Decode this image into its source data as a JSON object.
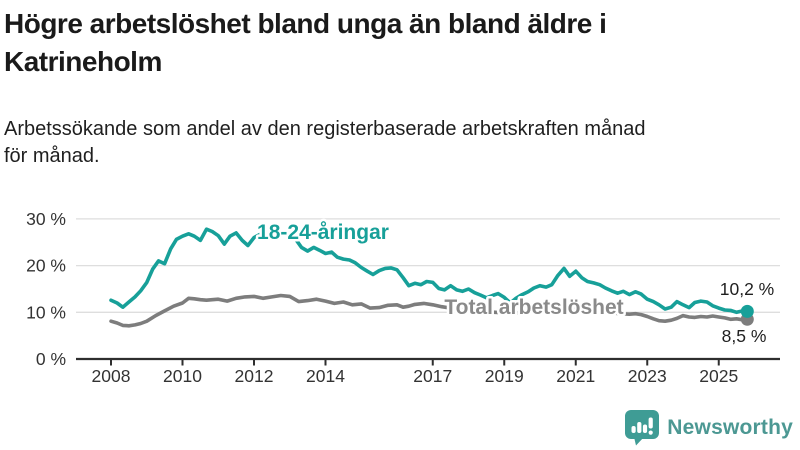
{
  "header": {
    "title": "Högre arbetslöshet bland unga än bland äldre i\nKatrineholm",
    "subtitle": "Arbetssökande som andel av den registerbaserade arbetskraften månad\nför månad."
  },
  "footer": {
    "brand": "Newsworthy",
    "logo_icon": "chart-speech-bubble-icon",
    "icon_color": "#3f9c95",
    "wordmark_color": "#4c9893"
  },
  "chart_data": {
    "type": "line",
    "title": "Högre arbetslöshet bland unga än bland äldre i Katrineholm",
    "subtitle": "Arbetssökande som andel av den registerbaserade arbetskraften månad för månad.",
    "grid": "horizontal",
    "legend_position": "inline-labels",
    "x_axis": {
      "ticks": [
        2008,
        2010,
        2012,
        2014,
        2017,
        2019,
        2021,
        2023,
        2025
      ],
      "tick_labels": [
        "2008",
        "2010",
        "2012",
        "2014",
        "2017",
        "2019",
        "2021",
        "2023",
        "2025"
      ],
      "range": [
        2008,
        2025.9
      ]
    },
    "y_axis": {
      "ticks": [
        0,
        10,
        20,
        30
      ],
      "tick_labels": [
        "0 %",
        "10 %",
        "20 %",
        "30 %"
      ],
      "range": [
        0,
        31
      ],
      "unit": "%"
    },
    "series": [
      {
        "id": "youth",
        "name": "18-24-åringar",
        "color": "#17a099",
        "end_value": 10.2,
        "end_label": "10,2 %",
        "points": [
          [
            2008.0,
            12.6
          ],
          [
            2008.17,
            12.0
          ],
          [
            2008.33,
            11.1
          ],
          [
            2008.5,
            12.2
          ],
          [
            2008.67,
            13.3
          ],
          [
            2008.83,
            14.6
          ],
          [
            2009.0,
            16.4
          ],
          [
            2009.17,
            19.3
          ],
          [
            2009.33,
            21.0
          ],
          [
            2009.5,
            20.4
          ],
          [
            2009.67,
            23.6
          ],
          [
            2009.83,
            25.6
          ],
          [
            2010.0,
            26.3
          ],
          [
            2010.17,
            26.8
          ],
          [
            2010.33,
            26.3
          ],
          [
            2010.5,
            25.4
          ],
          [
            2010.67,
            27.8
          ],
          [
            2010.83,
            27.3
          ],
          [
            2011.0,
            26.4
          ],
          [
            2011.17,
            24.6
          ],
          [
            2011.33,
            26.3
          ],
          [
            2011.5,
            27.0
          ],
          [
            2011.67,
            25.4
          ],
          [
            2011.83,
            24.3
          ],
          [
            2012.0,
            26.0
          ],
          [
            2012.17,
            26.7
          ],
          [
            2012.33,
            25.8
          ],
          [
            2012.5,
            27.6
          ],
          [
            2012.67,
            27.2
          ],
          [
            2012.83,
            26.8
          ],
          [
            2013.0,
            26.9
          ],
          [
            2013.17,
            25.6
          ],
          [
            2013.33,
            23.9
          ],
          [
            2013.5,
            23.1
          ],
          [
            2013.67,
            23.9
          ],
          [
            2013.83,
            23.3
          ],
          [
            2014.0,
            22.6
          ],
          [
            2014.17,
            22.9
          ],
          [
            2014.33,
            21.8
          ],
          [
            2014.5,
            21.4
          ],
          [
            2014.67,
            21.2
          ],
          [
            2014.83,
            20.6
          ],
          [
            2015.0,
            19.6
          ],
          [
            2015.17,
            18.8
          ],
          [
            2015.33,
            18.1
          ],
          [
            2015.5,
            18.9
          ],
          [
            2015.67,
            19.4
          ],
          [
            2015.83,
            19.5
          ],
          [
            2016.0,
            19.1
          ],
          [
            2016.17,
            17.4
          ],
          [
            2016.33,
            15.7
          ],
          [
            2016.5,
            16.2
          ],
          [
            2016.67,
            15.9
          ],
          [
            2016.83,
            16.6
          ],
          [
            2017.0,
            16.4
          ],
          [
            2017.17,
            15.1
          ],
          [
            2017.33,
            14.8
          ],
          [
            2017.5,
            15.7
          ],
          [
            2017.67,
            14.8
          ],
          [
            2017.83,
            14.5
          ],
          [
            2018.0,
            15.0
          ],
          [
            2018.17,
            14.2
          ],
          [
            2018.33,
            13.7
          ],
          [
            2018.5,
            13.1
          ],
          [
            2018.67,
            13.6
          ],
          [
            2018.83,
            14.0
          ],
          [
            2019.0,
            13.2
          ],
          [
            2019.17,
            12.0
          ],
          [
            2019.33,
            13.0
          ],
          [
            2019.5,
            13.8
          ],
          [
            2019.67,
            14.4
          ],
          [
            2019.83,
            15.2
          ],
          [
            2020.0,
            15.7
          ],
          [
            2020.17,
            15.4
          ],
          [
            2020.33,
            15.9
          ],
          [
            2020.5,
            17.9
          ],
          [
            2020.67,
            19.4
          ],
          [
            2020.83,
            17.7
          ],
          [
            2021.0,
            18.8
          ],
          [
            2021.17,
            17.4
          ],
          [
            2021.33,
            16.6
          ],
          [
            2021.5,
            16.3
          ],
          [
            2021.67,
            15.9
          ],
          [
            2021.83,
            15.2
          ],
          [
            2022.0,
            14.6
          ],
          [
            2022.17,
            14.1
          ],
          [
            2022.33,
            14.5
          ],
          [
            2022.5,
            13.8
          ],
          [
            2022.67,
            14.4
          ],
          [
            2022.83,
            13.9
          ],
          [
            2023.0,
            12.8
          ],
          [
            2023.17,
            12.3
          ],
          [
            2023.33,
            11.6
          ],
          [
            2023.5,
            10.7
          ],
          [
            2023.67,
            11.1
          ],
          [
            2023.83,
            12.3
          ],
          [
            2024.0,
            11.6
          ],
          [
            2024.17,
            11.0
          ],
          [
            2024.33,
            12.1
          ],
          [
            2024.5,
            12.4
          ],
          [
            2024.67,
            12.2
          ],
          [
            2024.83,
            11.4
          ],
          [
            2025.0,
            10.9
          ],
          [
            2025.17,
            10.5
          ],
          [
            2025.33,
            10.4
          ],
          [
            2025.5,
            10.0
          ],
          [
            2025.67,
            10.3
          ],
          [
            2025.8,
            10.2
          ]
        ]
      },
      {
        "id": "total",
        "name": "Total arbetslöshet",
        "color": "#7d7d7d",
        "label_color": "#8a8a8a",
        "end_value": 8.5,
        "end_label": "8,5 %",
        "points": [
          [
            2008.0,
            8.1
          ],
          [
            2008.17,
            7.7
          ],
          [
            2008.33,
            7.2
          ],
          [
            2008.5,
            7.1
          ],
          [
            2008.67,
            7.3
          ],
          [
            2008.83,
            7.6
          ],
          [
            2009.0,
            8.1
          ],
          [
            2009.25,
            9.3
          ],
          [
            2009.5,
            10.3
          ],
          [
            2009.75,
            11.3
          ],
          [
            2010.0,
            12.0
          ],
          [
            2010.17,
            13.0
          ],
          [
            2010.33,
            12.9
          ],
          [
            2010.5,
            12.7
          ],
          [
            2010.67,
            12.6
          ],
          [
            2010.83,
            12.7
          ],
          [
            2011.0,
            12.8
          ],
          [
            2011.25,
            12.4
          ],
          [
            2011.5,
            13.0
          ],
          [
            2011.75,
            13.3
          ],
          [
            2012.0,
            13.4
          ],
          [
            2012.25,
            13.0
          ],
          [
            2012.5,
            13.3
          ],
          [
            2012.75,
            13.6
          ],
          [
            2013.0,
            13.4
          ],
          [
            2013.25,
            12.3
          ],
          [
            2013.5,
            12.5
          ],
          [
            2013.75,
            12.8
          ],
          [
            2014.0,
            12.4
          ],
          [
            2014.25,
            11.9
          ],
          [
            2014.5,
            12.2
          ],
          [
            2014.75,
            11.6
          ],
          [
            2015.0,
            11.8
          ],
          [
            2015.25,
            10.9
          ],
          [
            2015.5,
            11.0
          ],
          [
            2015.75,
            11.5
          ],
          [
            2016.0,
            11.6
          ],
          [
            2016.17,
            11.1
          ],
          [
            2016.33,
            11.3
          ],
          [
            2016.5,
            11.7
          ],
          [
            2016.75,
            11.9
          ],
          [
            2017.0,
            11.6
          ],
          [
            2017.25,
            11.2
          ],
          [
            2017.5,
            10.9
          ],
          [
            2017.75,
            10.6
          ],
          [
            2018.0,
            10.5
          ],
          [
            2018.25,
            10.3
          ],
          [
            2018.5,
            10.1
          ],
          [
            2018.75,
            10.0
          ],
          [
            2019.0,
            9.9
          ],
          [
            2019.25,
            9.8
          ],
          [
            2019.5,
            10.0
          ],
          [
            2019.75,
            10.2
          ],
          [
            2020.0,
            10.4
          ],
          [
            2020.25,
            10.9
          ],
          [
            2020.5,
            11.3
          ],
          [
            2020.75,
            11.2
          ],
          [
            2021.0,
            11.0
          ],
          [
            2021.25,
            10.7
          ],
          [
            2021.5,
            10.4
          ],
          [
            2021.75,
            10.1
          ],
          [
            2022.0,
            9.9
          ],
          [
            2022.25,
            9.7
          ],
          [
            2022.5,
            9.6
          ],
          [
            2022.67,
            9.7
          ],
          [
            2022.83,
            9.5
          ],
          [
            2023.0,
            9.1
          ],
          [
            2023.17,
            8.6
          ],
          [
            2023.33,
            8.2
          ],
          [
            2023.5,
            8.1
          ],
          [
            2023.67,
            8.3
          ],
          [
            2023.83,
            8.7
          ],
          [
            2024.0,
            9.3
          ],
          [
            2024.17,
            9.0
          ],
          [
            2024.33,
            8.9
          ],
          [
            2024.5,
            9.1
          ],
          [
            2024.67,
            9.0
          ],
          [
            2024.83,
            9.2
          ],
          [
            2025.0,
            9.0
          ],
          [
            2025.17,
            8.8
          ],
          [
            2025.33,
            8.5
          ],
          [
            2025.5,
            8.6
          ],
          [
            2025.67,
            8.4
          ],
          [
            2025.8,
            8.5
          ]
        ]
      }
    ]
  }
}
